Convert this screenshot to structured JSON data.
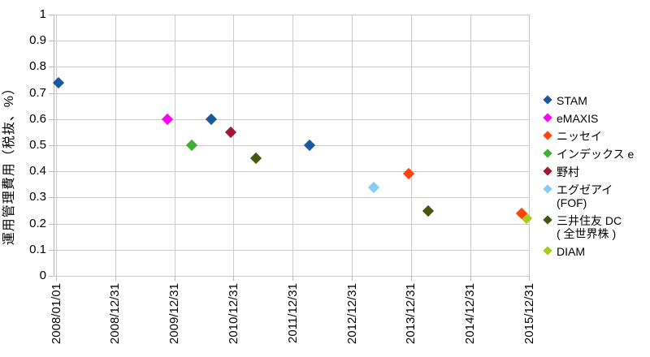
{
  "chart_data": {
    "type": "scatter",
    "title": "",
    "xlabel": "",
    "ylabel": "運用管理費用（税抜、%）",
    "ylim": [
      0,
      1
    ],
    "grid": true,
    "legend_position": "right",
    "marker": "diamond",
    "yticks": [
      {
        "label": "1",
        "value": 1.0
      },
      {
        "label": "0.9",
        "value": 0.9
      },
      {
        "label": "0.8",
        "value": 0.8
      },
      {
        "label": "0.7",
        "value": 0.7
      },
      {
        "label": "0.6",
        "value": 0.6
      },
      {
        "label": "0.5",
        "value": 0.5
      },
      {
        "label": "0.4",
        "value": 0.4
      },
      {
        "label": "0.3",
        "value": 0.3
      },
      {
        "label": "0.2",
        "value": 0.2
      },
      {
        "label": "0.1",
        "value": 0.1
      },
      {
        "label": "0",
        "value": 0.0
      }
    ],
    "xticks": [
      "2008/01/01",
      "2008/12/31",
      "2009/12/31",
      "2010/12/31",
      "2011/12/31",
      "2012/12/31",
      "2013/12/31",
      "2014/12/31",
      "2015/12/31"
    ],
    "series": [
      {
        "name": "STAM",
        "legend_lines": [
          "STAM"
        ],
        "color": "#1A5A9C",
        "points": [
          {
            "date": "2008-01",
            "value": 0.74
          },
          {
            "date": "2010-08",
            "value": 0.6
          },
          {
            "date": "2012-04",
            "value": 0.5
          }
        ]
      },
      {
        "name": "eMAXIS",
        "legend_lines": [
          "eMAXIS"
        ],
        "color": "#FF00FF",
        "points": [
          {
            "date": "2009-11",
            "value": 0.6
          }
        ]
      },
      {
        "name": "ニッセイ",
        "legend_lines": [
          "ニッセイ"
        ],
        "color": "#FF420E",
        "points": [
          {
            "date": "2013-12",
            "value": 0.39
          },
          {
            "date": "2015-11",
            "value": 0.24
          }
        ]
      },
      {
        "name": "インデックス e",
        "legend_lines": [
          "インデックス e"
        ],
        "color": "#42AE35",
        "points": [
          {
            "date": "2010-04",
            "value": 0.5
          }
        ]
      },
      {
        "name": "野村",
        "legend_lines": [
          "野村"
        ],
        "color": "#A01935",
        "points": [
          {
            "date": "2010-12",
            "value": 0.55
          }
        ]
      },
      {
        "name": "エグゼアイ (FOF)",
        "legend_lines": [
          "エグゼアイ",
          "(FOF)"
        ],
        "color": "#85CCF3",
        "points": [
          {
            "date": "2013-05",
            "value": 0.34
          }
        ]
      },
      {
        "name": "三井住友 DC ( 全世界株 )",
        "legend_lines": [
          "三井住友 DC",
          "( 全世界株 )"
        ],
        "color": "#445711",
        "points": [
          {
            "date": "2011-05",
            "value": 0.45
          },
          {
            "date": "2014-04",
            "value": 0.25
          }
        ]
      },
      {
        "name": "DIAM",
        "legend_lines": [
          "DIAM"
        ],
        "color": "#A6CC1C",
        "points": [
          {
            "date": "2015-12",
            "value": 0.22
          }
        ]
      }
    ]
  }
}
